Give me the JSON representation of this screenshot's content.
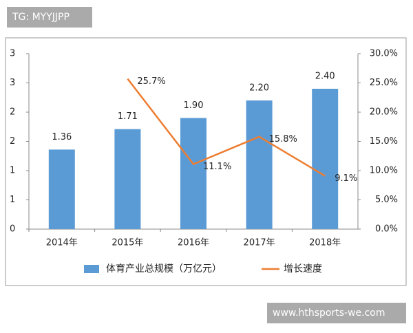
{
  "watermarks": [
    "TG: MYYJJPP",
    "www.hthsports-we.com"
  ],
  "chart_data": {
    "type": "bar",
    "categories": [
      "2014年",
      "2015年",
      "2016年",
      "2017年",
      "2018年"
    ],
    "series": [
      {
        "name": "体育产业总规模（万亿元）",
        "type": "bar",
        "color": "#5b9bd5",
        "values": [
          1.36,
          1.71,
          1.9,
          2.2,
          2.4
        ],
        "value_labels": [
          "1.36",
          "1.71",
          "1.90",
          "2.20",
          "2.40"
        ]
      },
      {
        "name": "增长速度",
        "type": "line",
        "axis": "y2",
        "color": "#ed7d31",
        "values": [
          null,
          25.7,
          11.1,
          15.8,
          9.1
        ],
        "value_labels": [
          null,
          "25.7%",
          "11.1%",
          "15.8%",
          "9.1%"
        ]
      }
    ],
    "ylim": [
      0,
      3
    ],
    "yticks": [
      0,
      {
        "value": 0.5,
        "label": "1"
      },
      {
        "value": 1,
        "label": "1"
      },
      {
        "value": 1.5,
        "label": "2"
      },
      {
        "value": 2,
        "label": "2"
      },
      {
        "value": 2.5,
        "label": "3"
      },
      3
    ],
    "y2lim": [
      0,
      30
    ],
    "y2ticks": [
      {
        "value": 0,
        "label": "0.0%"
      },
      {
        "value": 5,
        "label": "5.0%"
      },
      {
        "value": 10,
        "label": "10.0%"
      },
      {
        "value": 15,
        "label": "15.0%"
      },
      {
        "value": 20,
        "label": "20.0%"
      },
      {
        "value": 25,
        "label": "25.0%"
      },
      {
        "value": 30,
        "label": "30.0%"
      }
    ],
    "grid": false,
    "legend": "bottom"
  }
}
